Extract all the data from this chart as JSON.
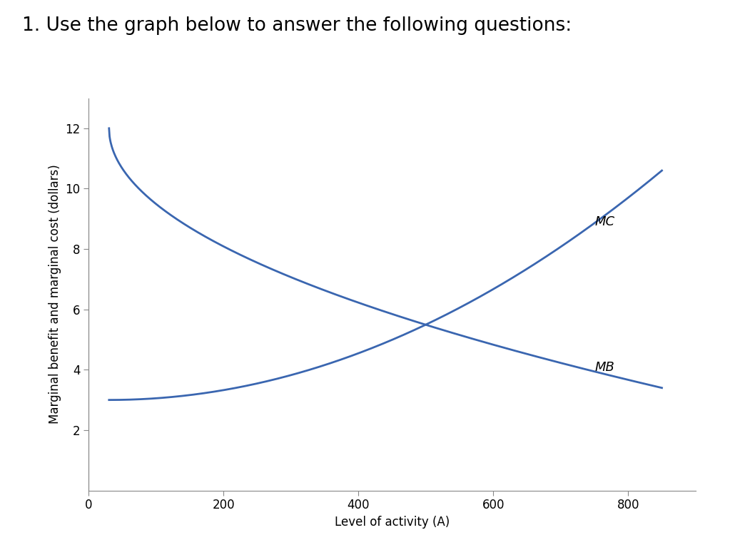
{
  "title": "1. Use the graph below to answer the following questions:",
  "xlabel": "Level of activity (A)",
  "ylabel": "Marginal benefit and marginal cost (dollars)",
  "x_min": 0,
  "x_max": 850,
  "y_min": 0,
  "y_max": 13,
  "x_ticks": [
    0,
    200,
    400,
    600,
    800
  ],
  "y_ticks": [
    2,
    4,
    6,
    8,
    10,
    12
  ],
  "x_start": 30,
  "mb_start": 12.0,
  "mb_end": 3.4,
  "mc_start": 3.0,
  "mc_end": 10.6,
  "curve_color": "#3a66b0",
  "line_width": 2.0,
  "mc_label": "MC",
  "mb_label": "MB",
  "title_fontsize": 19,
  "label_fontsize": 12,
  "tick_fontsize": 12,
  "curve_label_fontsize": 13,
  "background_color": "#ffffff",
  "plot_bg_color": "#ffffff"
}
